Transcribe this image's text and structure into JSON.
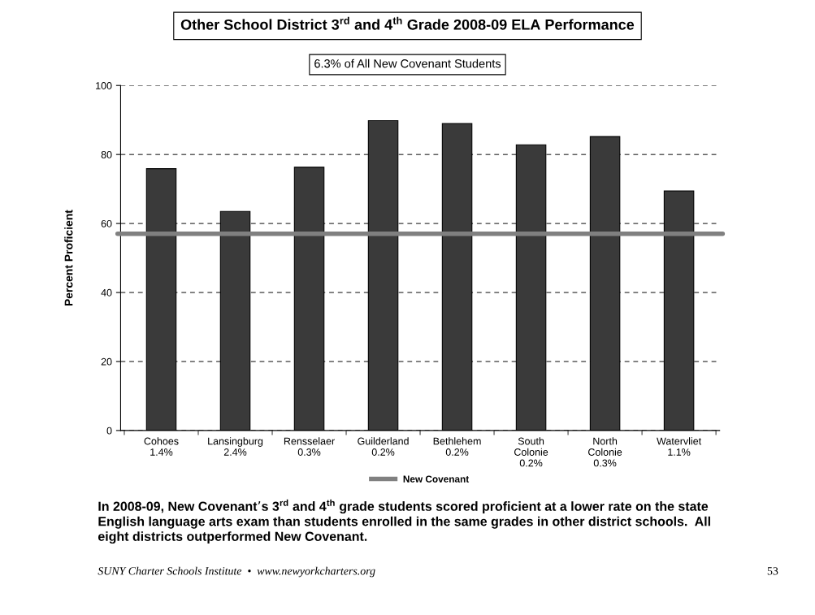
{
  "chart_data": {
    "type": "bar",
    "title": "Other School District 3$^{rd}$ and 4$^{th}$ Grade 2008-09 ELA Performance",
    "subtitle": "6.3% of All New Covenant Students",
    "ylabel": "Percent Proficient",
    "categories": [
      "Cohoes\n1.4%",
      "Lansingburg\n2.4%",
      "Rensselaer\n0.3%",
      "Guilderland\n0.2%",
      "Bethlehem\n0.2%",
      "South\nColonie\n0.2%",
      "North\nColonie\n0.3%",
      "Watervliet\n1.1%"
    ],
    "values": [
      75.9,
      63.5,
      76.3,
      89.8,
      89.0,
      82.8,
      85.2,
      69.4
    ],
    "color": "#3a3a3a",
    "ylim": [
      0,
      100
    ],
    "yticks": [
      0,
      20,
      40,
      60,
      80,
      100
    ],
    "grid": "y",
    "ref_lines": [
      {
        "axis": "y",
        "value": 57,
        "label": "New Covenant",
        "color": "#808080",
        "line_style": "solid"
      }
    ],
    "legend": "bottom",
    "annotations": [
      "In 2008-09, New Covenant’s 3$^{rd}$ and 4$^{th}$ grade students scored proficient at a lower rate on the state English language arts exam than students enrolled in the same grades in other district schools.  All eight districts outperformed New Covenant.",
      "SUNY Charter Schools Institute  •  www.newyorkcharters.org",
      "53"
    ]
  }
}
